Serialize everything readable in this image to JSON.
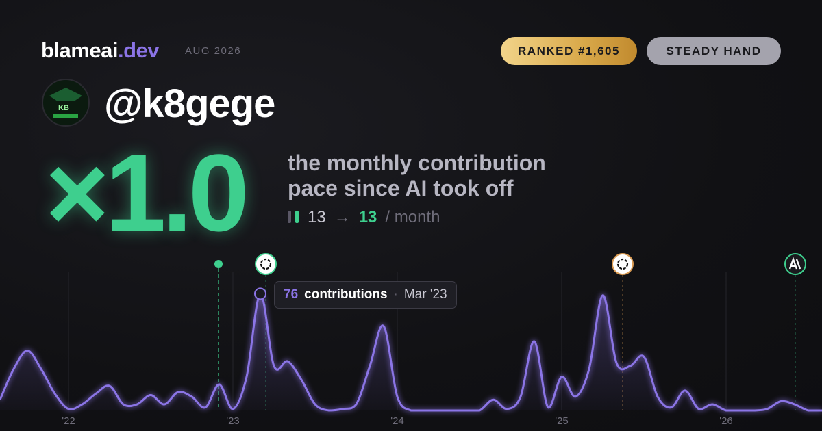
{
  "header": {
    "brand": "blameai",
    "brand_tld": ".dev",
    "period": "AUG 2026",
    "badges": [
      "RANKED #1,605",
      "STEADY HAND"
    ]
  },
  "user": {
    "handle": "@k8gege",
    "avatar_text": "KB"
  },
  "headline": {
    "multiplier": "×1.0",
    "description": [
      "the monthly contribution",
      "pace since AI took off"
    ],
    "before": 13,
    "arrow": "→",
    "after": 13,
    "unit": "/ month"
  },
  "chart_data": {
    "type": "line",
    "categories": [
      null,
      null,
      null,
      null,
      null,
      "'22",
      null,
      null,
      null,
      null,
      null,
      null,
      null,
      null,
      null,
      null,
      null,
      "'23",
      null,
      null,
      null,
      null,
      null,
      null,
      null,
      null,
      null,
      null,
      null,
      "'24",
      null,
      null,
      null,
      null,
      null,
      null,
      null,
      null,
      null,
      null,
      null,
      "'25",
      null,
      null,
      null,
      null,
      null,
      null,
      null,
      null,
      null,
      null,
      null,
      "'26",
      null,
      null,
      null,
      null,
      null,
      null,
      null
    ],
    "series": [
      {
        "name": "contributions",
        "color": "#8b74e6",
        "values": [
          7,
          27,
          39,
          27,
          11,
          1,
          4,
          11,
          16,
          4,
          4,
          10,
          4,
          12,
          9,
          2,
          17,
          1,
          22,
          76,
          29,
          32,
          20,
          4,
          0,
          1,
          4,
          29,
          55,
          9,
          0,
          0,
          0,
          0,
          0,
          0,
          7,
          1,
          9,
          45,
          2,
          22,
          9,
          27,
          75,
          31,
          29,
          35,
          9,
          2,
          13,
          1,
          4,
          0,
          0,
          0,
          1,
          6,
          4,
          0,
          0
        ]
      }
    ],
    "ylim": [
      0,
      90
    ],
    "tooltip": {
      "index": 19,
      "label": "contributions",
      "separator": "·",
      "date": "Mar '23"
    },
    "grid": true
  }
}
